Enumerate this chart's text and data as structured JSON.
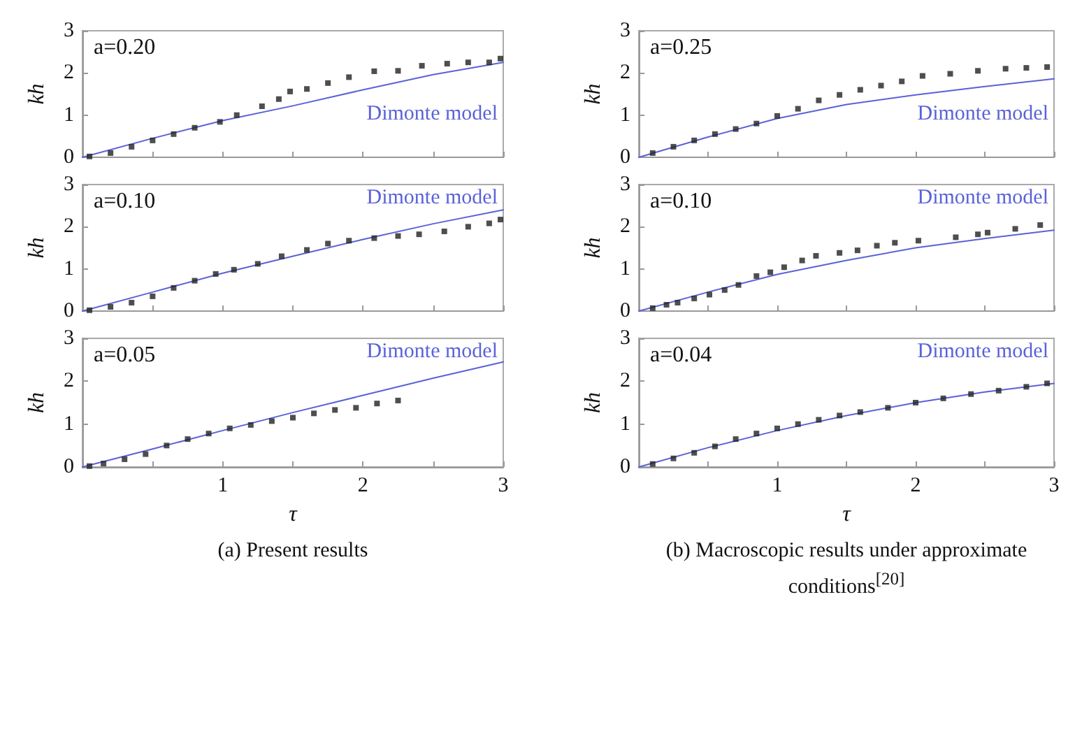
{
  "chart_data": [
    {
      "type": "scatter",
      "ylabel": "kh",
      "xlim": [
        0,
        3
      ],
      "ylim": [
        0,
        3
      ],
      "xticks": [
        {
          "value": 0.5,
          "label": null
        },
        1,
        {
          "value": 1.5,
          "label": null
        },
        2,
        {
          "value": 2.5,
          "label": null
        },
        3
      ],
      "yticks": [
        0,
        1,
        2,
        3
      ],
      "tick_labels": "y",
      "legend": "right",
      "annotations": [
        "a=0.20"
      ],
      "series": [
        {
          "type": "scatter",
          "color": "#222222",
          "marker": "square",
          "x": [
            0.05,
            0.2,
            0.35,
            0.5,
            0.65,
            0.8,
            0.98,
            1.1,
            1.28,
            1.4,
            1.48,
            1.6,
            1.75,
            1.9,
            2.08,
            2.25,
            2.42,
            2.6,
            2.75,
            2.9,
            2.98
          ],
          "values": [
            0.02,
            0.1,
            0.25,
            0.4,
            0.55,
            0.7,
            0.84,
            1.0,
            1.21,
            1.38,
            1.56,
            1.62,
            1.76,
            1.9,
            2.04,
            2.05,
            2.17,
            2.22,
            2.25,
            2.25,
            2.34
          ]
        },
        {
          "type": "line",
          "name": "Dimonte model",
          "color": "#5a62d8",
          "x": [
            0,
            0.5,
            1,
            1.5,
            2,
            2.5,
            3
          ],
          "values": [
            0,
            0.45,
            0.87,
            1.22,
            1.6,
            1.96,
            2.25
          ]
        }
      ]
    },
    {
      "type": "scatter",
      "ylabel": "kh",
      "xlim": [
        0,
        3
      ],
      "ylim": [
        0,
        3
      ],
      "xticks": [
        {
          "value": 0.5,
          "label": null
        },
        1,
        {
          "value": 1.5,
          "label": null
        },
        2,
        {
          "value": 2.5,
          "label": null
        },
        3
      ],
      "yticks": [
        0,
        1,
        2,
        3
      ],
      "tick_labels": "y",
      "legend": "right",
      "annotations": [
        "a=0.25"
      ],
      "series": [
        {
          "type": "scatter",
          "color": "#222222",
          "marker": "square",
          "x": [
            0.1,
            0.25,
            0.4,
            0.55,
            0.7,
            0.85,
            1.0,
            1.15,
            1.3,
            1.45,
            1.6,
            1.75,
            1.9,
            2.05,
            2.25,
            2.45,
            2.65,
            2.8,
            2.95
          ],
          "values": [
            0.1,
            0.25,
            0.4,
            0.55,
            0.67,
            0.8,
            0.98,
            1.15,
            1.35,
            1.48,
            1.6,
            1.7,
            1.8,
            1.93,
            1.98,
            2.05,
            2.1,
            2.12,
            2.14
          ]
        },
        {
          "type": "line",
          "name": "Dimonte model",
          "color": "#5a62d8",
          "x": [
            0,
            0.5,
            1,
            1.5,
            2,
            2.5,
            3
          ],
          "values": [
            0,
            0.48,
            0.92,
            1.25,
            1.48,
            1.68,
            1.86
          ]
        }
      ]
    },
    {
      "type": "scatter",
      "ylabel": "kh",
      "xlim": [
        0,
        3
      ],
      "ylim": [
        0,
        3
      ],
      "xticks": [
        {
          "value": 0.5,
          "label": null
        },
        1,
        {
          "value": 1.5,
          "label": null
        },
        2,
        {
          "value": 2.5,
          "label": null
        },
        3
      ],
      "yticks": [
        0,
        1,
        2,
        3
      ],
      "tick_labels": "y",
      "legend": "top right",
      "annotations": [
        "a=0.10"
      ],
      "series": [
        {
          "type": "scatter",
          "color": "#222222",
          "marker": "square",
          "x": [
            0.05,
            0.2,
            0.35,
            0.5,
            0.65,
            0.8,
            0.95,
            1.08,
            1.25,
            1.42,
            1.6,
            1.75,
            1.9,
            2.08,
            2.25,
            2.4,
            2.58,
            2.75,
            2.9,
            2.98
          ],
          "values": [
            0.02,
            0.1,
            0.2,
            0.35,
            0.55,
            0.72,
            0.88,
            0.98,
            1.12,
            1.3,
            1.45,
            1.6,
            1.67,
            1.73,
            1.78,
            1.82,
            1.89,
            2.0,
            2.08,
            2.17
          ]
        },
        {
          "type": "line",
          "name": "Dimonte model",
          "color": "#5a62d8",
          "x": [
            0,
            0.5,
            1,
            1.5,
            2,
            2.5,
            3
          ],
          "values": [
            0,
            0.45,
            0.9,
            1.3,
            1.7,
            2.07,
            2.4
          ]
        }
      ]
    },
    {
      "type": "scatter",
      "ylabel": "kh",
      "xlim": [
        0,
        3
      ],
      "ylim": [
        0,
        3
      ],
      "xticks": [
        {
          "value": 0.5,
          "label": null
        },
        1,
        {
          "value": 1.5,
          "label": null
        },
        2,
        {
          "value": 2.5,
          "label": null
        },
        3
      ],
      "yticks": [
        0,
        1,
        2,
        3
      ],
      "tick_labels": "y",
      "legend": "top right",
      "annotations": [
        "a=0.10"
      ],
      "series": [
        {
          "type": "scatter",
          "color": "#222222",
          "marker": "square",
          "x": [
            0.1,
            0.2,
            0.28,
            0.4,
            0.51,
            0.62,
            0.72,
            0.85,
            0.95,
            1.05,
            1.18,
            1.28,
            1.45,
            1.58,
            1.72,
            1.85,
            2.02,
            2.29,
            2.45,
            2.52,
            2.72,
            2.9
          ],
          "values": [
            0.07,
            0.15,
            0.2,
            0.3,
            0.39,
            0.5,
            0.62,
            0.83,
            0.92,
            1.04,
            1.2,
            1.31,
            1.38,
            1.44,
            1.55,
            1.62,
            1.67,
            1.75,
            1.82,
            1.86,
            1.95,
            2.04
          ]
        },
        {
          "type": "line",
          "name": "Dimonte model",
          "color": "#5a62d8",
          "x": [
            0,
            0.5,
            1,
            1.5,
            2,
            2.5,
            3
          ],
          "values": [
            0,
            0.45,
            0.87,
            1.2,
            1.5,
            1.72,
            1.92
          ]
        }
      ]
    },
    {
      "type": "scatter",
      "ylabel": "kh",
      "xlabel": "τ",
      "xlim": [
        0,
        3
      ],
      "ylim": [
        0,
        3
      ],
      "xticks": [
        {
          "value": 0.5,
          "label": null
        },
        1,
        {
          "value": 1.5,
          "label": null
        },
        2,
        {
          "value": 2.5,
          "label": null
        },
        3
      ],
      "yticks": [
        0,
        1,
        2,
        3
      ],
      "legend": "top right",
      "annotations": [
        "a=0.05",
        "(a) Present results"
      ],
      "series": [
        {
          "type": "scatter",
          "color": "#222222",
          "marker": "square",
          "x": [
            0.05,
            0.15,
            0.3,
            0.45,
            0.6,
            0.75,
            0.9,
            1.05,
            1.2,
            1.35,
            1.5,
            1.65,
            1.8,
            1.95,
            2.1,
            2.25
          ],
          "values": [
            0.02,
            0.08,
            0.18,
            0.3,
            0.5,
            0.65,
            0.78,
            0.9,
            0.98,
            1.07,
            1.15,
            1.25,
            1.33,
            1.38,
            1.48,
            1.55
          ]
        },
        {
          "type": "line",
          "name": "Dimonte model",
          "color": "#5a62d8",
          "x": [
            0,
            0.5,
            1,
            1.5,
            2,
            2.5,
            3
          ],
          "values": [
            0,
            0.42,
            0.85,
            1.27,
            1.67,
            2.07,
            2.45
          ]
        }
      ]
    },
    {
      "type": "scatter",
      "ylabel": "kh",
      "xlabel": "τ",
      "xlim": [
        0,
        3
      ],
      "ylim": [
        0,
        3
      ],
      "xticks": [
        {
          "value": 0.5,
          "label": null
        },
        1,
        {
          "value": 1.5,
          "label": null
        },
        2,
        {
          "value": 2.5,
          "label": null
        },
        3
      ],
      "yticks": [
        0,
        1,
        2,
        3
      ],
      "legend": "top right",
      "annotations": [
        "a=0.04",
        "(b) Macroscopic results under approximate conditions$^{[20]}$"
      ],
      "series": [
        {
          "type": "scatter",
          "color": "#222222",
          "marker": "square",
          "x": [
            0.1,
            0.25,
            0.4,
            0.55,
            0.7,
            0.85,
            1.0,
            1.15,
            1.3,
            1.45,
            1.6,
            1.8,
            2.0,
            2.2,
            2.4,
            2.6,
            2.8,
            2.95
          ],
          "values": [
            0.07,
            0.2,
            0.33,
            0.48,
            0.65,
            0.78,
            0.9,
            1.0,
            1.1,
            1.2,
            1.28,
            1.38,
            1.5,
            1.6,
            1.7,
            1.78,
            1.87,
            1.95
          ]
        },
        {
          "type": "line",
          "name": "Dimonte model",
          "color": "#5a62d8",
          "x": [
            0,
            0.5,
            1,
            1.5,
            2,
            2.5,
            3
          ],
          "values": [
            0,
            0.45,
            0.85,
            1.2,
            1.5,
            1.75,
            1.95
          ]
        }
      ]
    }
  ]
}
